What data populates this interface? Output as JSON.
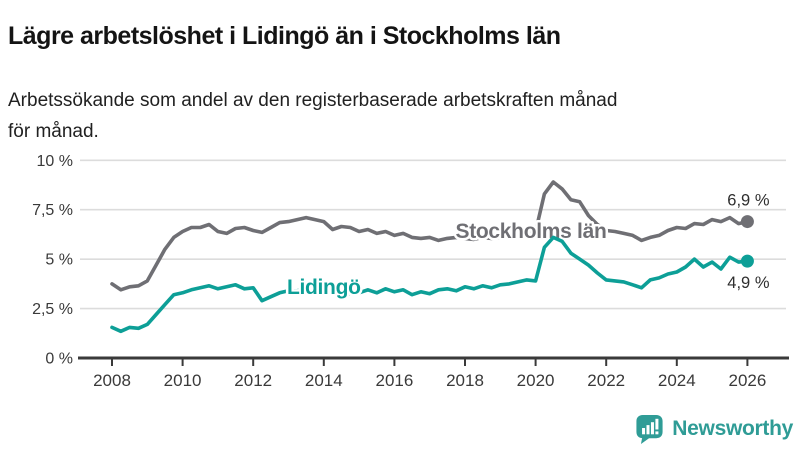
{
  "header": {
    "title": "Lägre arbetslöshet i Lidingö än i Stockholms län",
    "subtitle_lines": [
      "Arbetssökande som andel av den registerbaserade arbetskraften månad",
      "för månad."
    ]
  },
  "branding": {
    "logo_text": "Newsworthy",
    "logo_color": "#2f9c96",
    "logo_icon": "speech-bubble-bar-chart"
  },
  "chart_data": {
    "type": "line",
    "title": "Lägre arbetslöshet i Lidingö än i Stockholms län",
    "xlabel": "",
    "ylabel": "",
    "x_unit": "year (monthly series, sampled quarterly)",
    "xlim": [
      2008,
      2026.6
    ],
    "ylim": [
      0,
      10
    ],
    "grid": "horizontal",
    "legend_position": "inline-labels",
    "x": [
      2008,
      2008.25,
      2008.5,
      2008.75,
      2009,
      2009.25,
      2009.5,
      2009.75,
      2010,
      2010.25,
      2010.5,
      2010.75,
      2011,
      2011.25,
      2011.5,
      2011.75,
      2012,
      2012.25,
      2012.5,
      2012.75,
      2013,
      2013.25,
      2013.5,
      2013.75,
      2014,
      2014.25,
      2014.5,
      2014.75,
      2015,
      2015.25,
      2015.5,
      2015.75,
      2016,
      2016.25,
      2016.5,
      2016.75,
      2017,
      2017.25,
      2017.5,
      2017.75,
      2018,
      2018.25,
      2018.5,
      2018.75,
      2019,
      2019.25,
      2019.5,
      2019.75,
      2020,
      2020.25,
      2020.5,
      2020.75,
      2021,
      2021.25,
      2021.5,
      2021.75,
      2022,
      2022.25,
      2022.5,
      2022.75,
      2023,
      2023.25,
      2023.5,
      2023.75,
      2024,
      2024.25,
      2024.5,
      2024.75,
      2025,
      2025.25,
      2025.5,
      2025.75,
      2026
    ],
    "series": [
      {
        "name": "Stockholms län",
        "color": "#6f6f74",
        "values": [
          3.75,
          3.45,
          3.6,
          3.65,
          3.9,
          4.7,
          5.5,
          6.1,
          6.4,
          6.6,
          6.6,
          6.75,
          6.4,
          6.3,
          6.55,
          6.6,
          6.45,
          6.35,
          6.6,
          6.85,
          6.9,
          7.0,
          7.1,
          7.0,
          6.9,
          6.5,
          6.65,
          6.6,
          6.4,
          6.5,
          6.3,
          6.4,
          6.2,
          6.3,
          6.1,
          6.05,
          6.1,
          5.95,
          6.05,
          6.1,
          6.05,
          6.0,
          6.1,
          6.05,
          6.1,
          6.15,
          6.2,
          6.3,
          6.4,
          8.3,
          8.9,
          8.55,
          8.0,
          7.9,
          7.2,
          6.75,
          6.45,
          6.4,
          6.3,
          6.2,
          5.95,
          6.1,
          6.2,
          6.45,
          6.6,
          6.55,
          6.8,
          6.75,
          7.0,
          6.9,
          7.1,
          6.8,
          6.9
        ],
        "end_value": 6.9,
        "end_label": "6,9 %",
        "end_label_placement": "above",
        "label_anchor": {
          "year": 2019.87,
          "value": 6.42
        }
      },
      {
        "name": "Lidingö",
        "color": "#0d9f97",
        "values": [
          1.55,
          1.35,
          1.55,
          1.5,
          1.7,
          2.2,
          2.7,
          3.2,
          3.3,
          3.45,
          3.55,
          3.65,
          3.5,
          3.6,
          3.7,
          3.5,
          3.55,
          2.9,
          3.1,
          3.3,
          3.4,
          3.4,
          3.5,
          3.6,
          3.5,
          3.4,
          3.3,
          3.25,
          3.3,
          3.45,
          3.3,
          3.5,
          3.35,
          3.45,
          3.2,
          3.35,
          3.25,
          3.45,
          3.5,
          3.4,
          3.6,
          3.5,
          3.65,
          3.55,
          3.7,
          3.75,
          3.85,
          3.95,
          3.9,
          5.6,
          6.1,
          5.9,
          5.3,
          5.0,
          4.7,
          4.3,
          3.95,
          3.9,
          3.85,
          3.7,
          3.55,
          3.95,
          4.05,
          4.25,
          4.35,
          4.6,
          5.0,
          4.6,
          4.85,
          4.5,
          5.1,
          4.85,
          4.9
        ],
        "end_value": 4.9,
        "end_label": "4,9 %",
        "end_label_placement": "below",
        "label_anchor": {
          "year": 2014.0,
          "value": 3.59
        }
      }
    ],
    "yticks": [
      {
        "value": 0,
        "label": "0 %"
      },
      {
        "value": 2.5,
        "label": "2,5 %"
      },
      {
        "value": 5,
        "label": "5 %"
      },
      {
        "value": 7.5,
        "label": "7,5 %"
      },
      {
        "value": 10,
        "label": "10 %"
      }
    ],
    "xticks": [
      2008,
      2010,
      2012,
      2014,
      2016,
      2018,
      2020,
      2022,
      2024,
      2026
    ],
    "colors": {
      "grid": "#dcdcdc",
      "axis": "#3a3a3a",
      "tick_label": "#3a3a3a",
      "end_label": "#2e2e2e"
    }
  }
}
